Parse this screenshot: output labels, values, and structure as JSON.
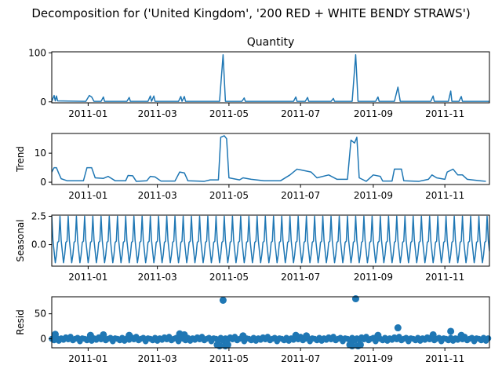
{
  "figure": {
    "suptitle": "Decomposition for ('United Kingdom', '200 RED + WHITE BENDY STRAWS')"
  },
  "chart_data": [
    {
      "type": "line",
      "panel": "observed",
      "title": "Quantity",
      "ylabel": "",
      "x_range": [
        "2010-12-01",
        "2011-12-09"
      ],
      "ylim": [
        -2,
        102
      ],
      "yticks": [
        0,
        100
      ],
      "xticks": [
        "2011-01",
        "2011-03",
        "2011-05",
        "2011-07",
        "2011-09",
        "2011-11"
      ],
      "color": "#1f77b4",
      "baseline": 1,
      "points": [
        [
          "2010-12-01",
          1
        ],
        [
          "2010-12-03",
          13
        ],
        [
          "2010-12-04",
          2
        ],
        [
          "2010-12-05",
          12
        ],
        [
          "2010-12-06",
          2
        ],
        [
          "2010-12-30",
          1
        ],
        [
          "2011-01-02",
          13
        ],
        [
          "2011-01-04",
          10
        ],
        [
          "2011-01-06",
          1
        ],
        [
          "2011-01-12",
          1
        ],
        [
          "2011-01-14",
          10
        ],
        [
          "2011-01-15",
          1
        ],
        [
          "2011-02-03",
          1
        ],
        [
          "2011-02-05",
          9
        ],
        [
          "2011-02-06",
          1
        ],
        [
          "2011-02-21",
          1
        ],
        [
          "2011-02-23",
          12
        ],
        [
          "2011-02-24",
          1
        ],
        [
          "2011-02-26",
          12
        ],
        [
          "2011-02-27",
          1
        ],
        [
          "2011-03-19",
          1
        ],
        [
          "2011-03-21",
          11
        ],
        [
          "2011-03-22",
          1
        ],
        [
          "2011-03-24",
          11
        ],
        [
          "2011-03-25",
          1
        ],
        [
          "2011-04-23",
          1
        ],
        [
          "2011-04-26",
          96
        ],
        [
          "2011-04-28",
          1
        ],
        [
          "2011-05-12",
          1
        ],
        [
          "2011-05-14",
          8
        ],
        [
          "2011-05-15",
          1
        ],
        [
          "2011-06-25",
          1
        ],
        [
          "2011-06-27",
          10
        ],
        [
          "2011-06-28",
          1
        ],
        [
          "2011-07-05",
          1
        ],
        [
          "2011-07-07",
          9
        ],
        [
          "2011-07-08",
          1
        ],
        [
          "2011-07-27",
          1
        ],
        [
          "2011-07-29",
          7
        ],
        [
          "2011-07-30",
          1
        ],
        [
          "2011-08-14",
          1
        ],
        [
          "2011-08-17",
          96
        ],
        [
          "2011-08-19",
          1
        ],
        [
          "2011-09-03",
          1
        ],
        [
          "2011-09-05",
          10
        ],
        [
          "2011-09-06",
          1
        ],
        [
          "2011-09-19",
          1
        ],
        [
          "2011-09-22",
          30
        ],
        [
          "2011-09-24",
          1
        ],
        [
          "2011-10-20",
          1
        ],
        [
          "2011-10-22",
          12
        ],
        [
          "2011-10-23",
          1
        ],
        [
          "2011-11-04",
          1
        ],
        [
          "2011-11-06",
          22
        ],
        [
          "2011-11-07",
          1
        ],
        [
          "2011-11-13",
          1
        ],
        [
          "2011-11-15",
          11
        ],
        [
          "2011-11-16",
          1
        ],
        [
          "2011-12-09",
          1
        ]
      ]
    },
    {
      "type": "line",
      "panel": "trend",
      "title": "",
      "ylabel": "Trend",
      "x_range": [
        "2010-12-01",
        "2011-12-09"
      ],
      "ylim": [
        -0.8,
        16.8
      ],
      "yticks": [
        0,
        10
      ],
      "xticks": [
        "2011-01",
        "2011-03",
        "2011-05",
        "2011-07",
        "2011-09",
        "2011-11"
      ],
      "color": "#1f77b4",
      "points": [
        [
          "2010-12-01",
          3.5
        ],
        [
          "2010-12-03",
          5
        ],
        [
          "2010-12-05",
          5
        ],
        [
          "2010-12-07",
          3
        ],
        [
          "2010-12-09",
          1.2
        ],
        [
          "2010-12-14",
          0.5
        ],
        [
          "2010-12-28",
          0.5
        ],
        [
          "2010-12-31",
          5
        ],
        [
          "2011-01-04",
          5
        ],
        [
          "2011-01-07",
          1.5
        ],
        [
          "2011-01-14",
          1.3
        ],
        [
          "2011-01-18",
          2
        ],
        [
          "2011-01-24",
          0.5
        ],
        [
          "2011-02-02",
          0.5
        ],
        [
          "2011-02-04",
          2.3
        ],
        [
          "2011-02-08",
          2.2
        ],
        [
          "2011-02-11",
          0.3
        ],
        [
          "2011-02-20",
          0.5
        ],
        [
          "2011-02-23",
          2
        ],
        [
          "2011-02-27",
          1.8
        ],
        [
          "2011-03-04",
          0.4
        ],
        [
          "2011-03-16",
          0.4
        ],
        [
          "2011-03-20",
          3.5
        ],
        [
          "2011-03-24",
          3.2
        ],
        [
          "2011-03-27",
          0.5
        ],
        [
          "2011-04-10",
          0.3
        ],
        [
          "2011-04-15",
          0.8
        ],
        [
          "2011-04-22",
          0.8
        ],
        [
          "2011-04-24",
          15.5
        ],
        [
          "2011-04-27",
          16
        ],
        [
          "2011-04-29",
          15
        ],
        [
          "2011-05-01",
          1.5
        ],
        [
          "2011-05-10",
          0.8
        ],
        [
          "2011-05-13",
          1.5
        ],
        [
          "2011-05-20",
          1.0
        ],
        [
          "2011-05-31",
          0.5
        ],
        [
          "2011-06-14",
          0.5
        ],
        [
          "2011-06-22",
          2.5
        ],
        [
          "2011-06-28",
          4.5
        ],
        [
          "2011-07-04",
          4.0
        ],
        [
          "2011-07-10",
          3.5
        ],
        [
          "2011-07-15",
          1.5
        ],
        [
          "2011-07-25",
          2.5
        ],
        [
          "2011-08-01",
          1.0
        ],
        [
          "2011-08-10",
          1.0
        ],
        [
          "2011-08-13",
          14.5
        ],
        [
          "2011-08-16",
          13.5
        ],
        [
          "2011-08-18",
          15.5
        ],
        [
          "2011-08-20",
          1.5
        ],
        [
          "2011-08-26",
          0.3
        ],
        [
          "2011-09-01",
          2.5
        ],
        [
          "2011-09-07",
          2.0
        ],
        [
          "2011-09-09",
          0.4
        ],
        [
          "2011-09-17",
          0.4
        ],
        [
          "2011-09-19",
          4.5
        ],
        [
          "2011-09-25",
          4.5
        ],
        [
          "2011-09-27",
          0.5
        ],
        [
          "2011-10-10",
          0.3
        ],
        [
          "2011-10-18",
          1.0
        ],
        [
          "2011-10-21",
          2.5
        ],
        [
          "2011-10-25",
          1.5
        ],
        [
          "2011-11-01",
          1.0
        ],
        [
          "2011-11-03",
          3.5
        ],
        [
          "2011-11-08",
          4.5
        ],
        [
          "2011-11-12",
          2.5
        ],
        [
          "2011-11-16",
          2.5
        ],
        [
          "2011-11-20",
          1.0
        ],
        [
          "2011-12-01",
          0.5
        ],
        [
          "2011-12-06",
          0.3
        ]
      ]
    },
    {
      "type": "line",
      "panel": "seasonal",
      "title": "",
      "ylabel": "Seasonal",
      "x_range": [
        "2010-12-01",
        "2011-12-09"
      ],
      "ylim": [
        -1.9,
        2.6
      ],
      "yticks": [
        0.0,
        2.5
      ],
      "xticks": [
        "2011-01",
        "2011-03",
        "2011-05",
        "2011-07",
        "2011-09",
        "2011-11"
      ],
      "color": "#1f77b4",
      "period_days": 7,
      "cycle": [
        2.5,
        0.4,
        -0.6,
        -1.6,
        -0.9,
        0.2,
        0.3
      ]
    },
    {
      "type": "scatter",
      "panel": "resid",
      "title": "",
      "ylabel": "Resid",
      "x_range": [
        "2010-12-01",
        "2011-12-09"
      ],
      "ylim": [
        -18,
        84
      ],
      "yticks": [
        0,
        50
      ],
      "xticks": [
        "2011-01",
        "2011-03",
        "2011-05",
        "2011-07",
        "2011-09",
        "2011-11"
      ],
      "color": "#1f77b4",
      "baseline_pattern": [
        0,
        -3,
        2,
        -4,
        1,
        -2,
        3,
        -1,
        4,
        -3,
        0,
        2,
        -5,
        1
      ],
      "baseline_step_days": 2,
      "outliers": [
        [
          "2010-12-04",
          9
        ],
        [
          "2011-01-03",
          7
        ],
        [
          "2011-01-14",
          8
        ],
        [
          "2011-02-05",
          7
        ],
        [
          "2011-03-20",
          10
        ],
        [
          "2011-03-24",
          8
        ],
        [
          "2011-04-21",
          -12
        ],
        [
          "2011-04-23",
          -14
        ],
        [
          "2011-04-26",
          77
        ],
        [
          "2011-04-28",
          -14
        ],
        [
          "2011-04-30",
          -12
        ],
        [
          "2011-05-13",
          6
        ],
        [
          "2011-06-27",
          7
        ],
        [
          "2011-07-06",
          6
        ],
        [
          "2011-08-12",
          -12
        ],
        [
          "2011-08-14",
          -14
        ],
        [
          "2011-08-17",
          80
        ],
        [
          "2011-08-19",
          -14
        ],
        [
          "2011-08-21",
          -12
        ],
        [
          "2011-09-05",
          7
        ],
        [
          "2011-09-22",
          22
        ],
        [
          "2011-10-22",
          8
        ],
        [
          "2011-11-06",
          15
        ],
        [
          "2011-11-15",
          7
        ]
      ]
    }
  ]
}
